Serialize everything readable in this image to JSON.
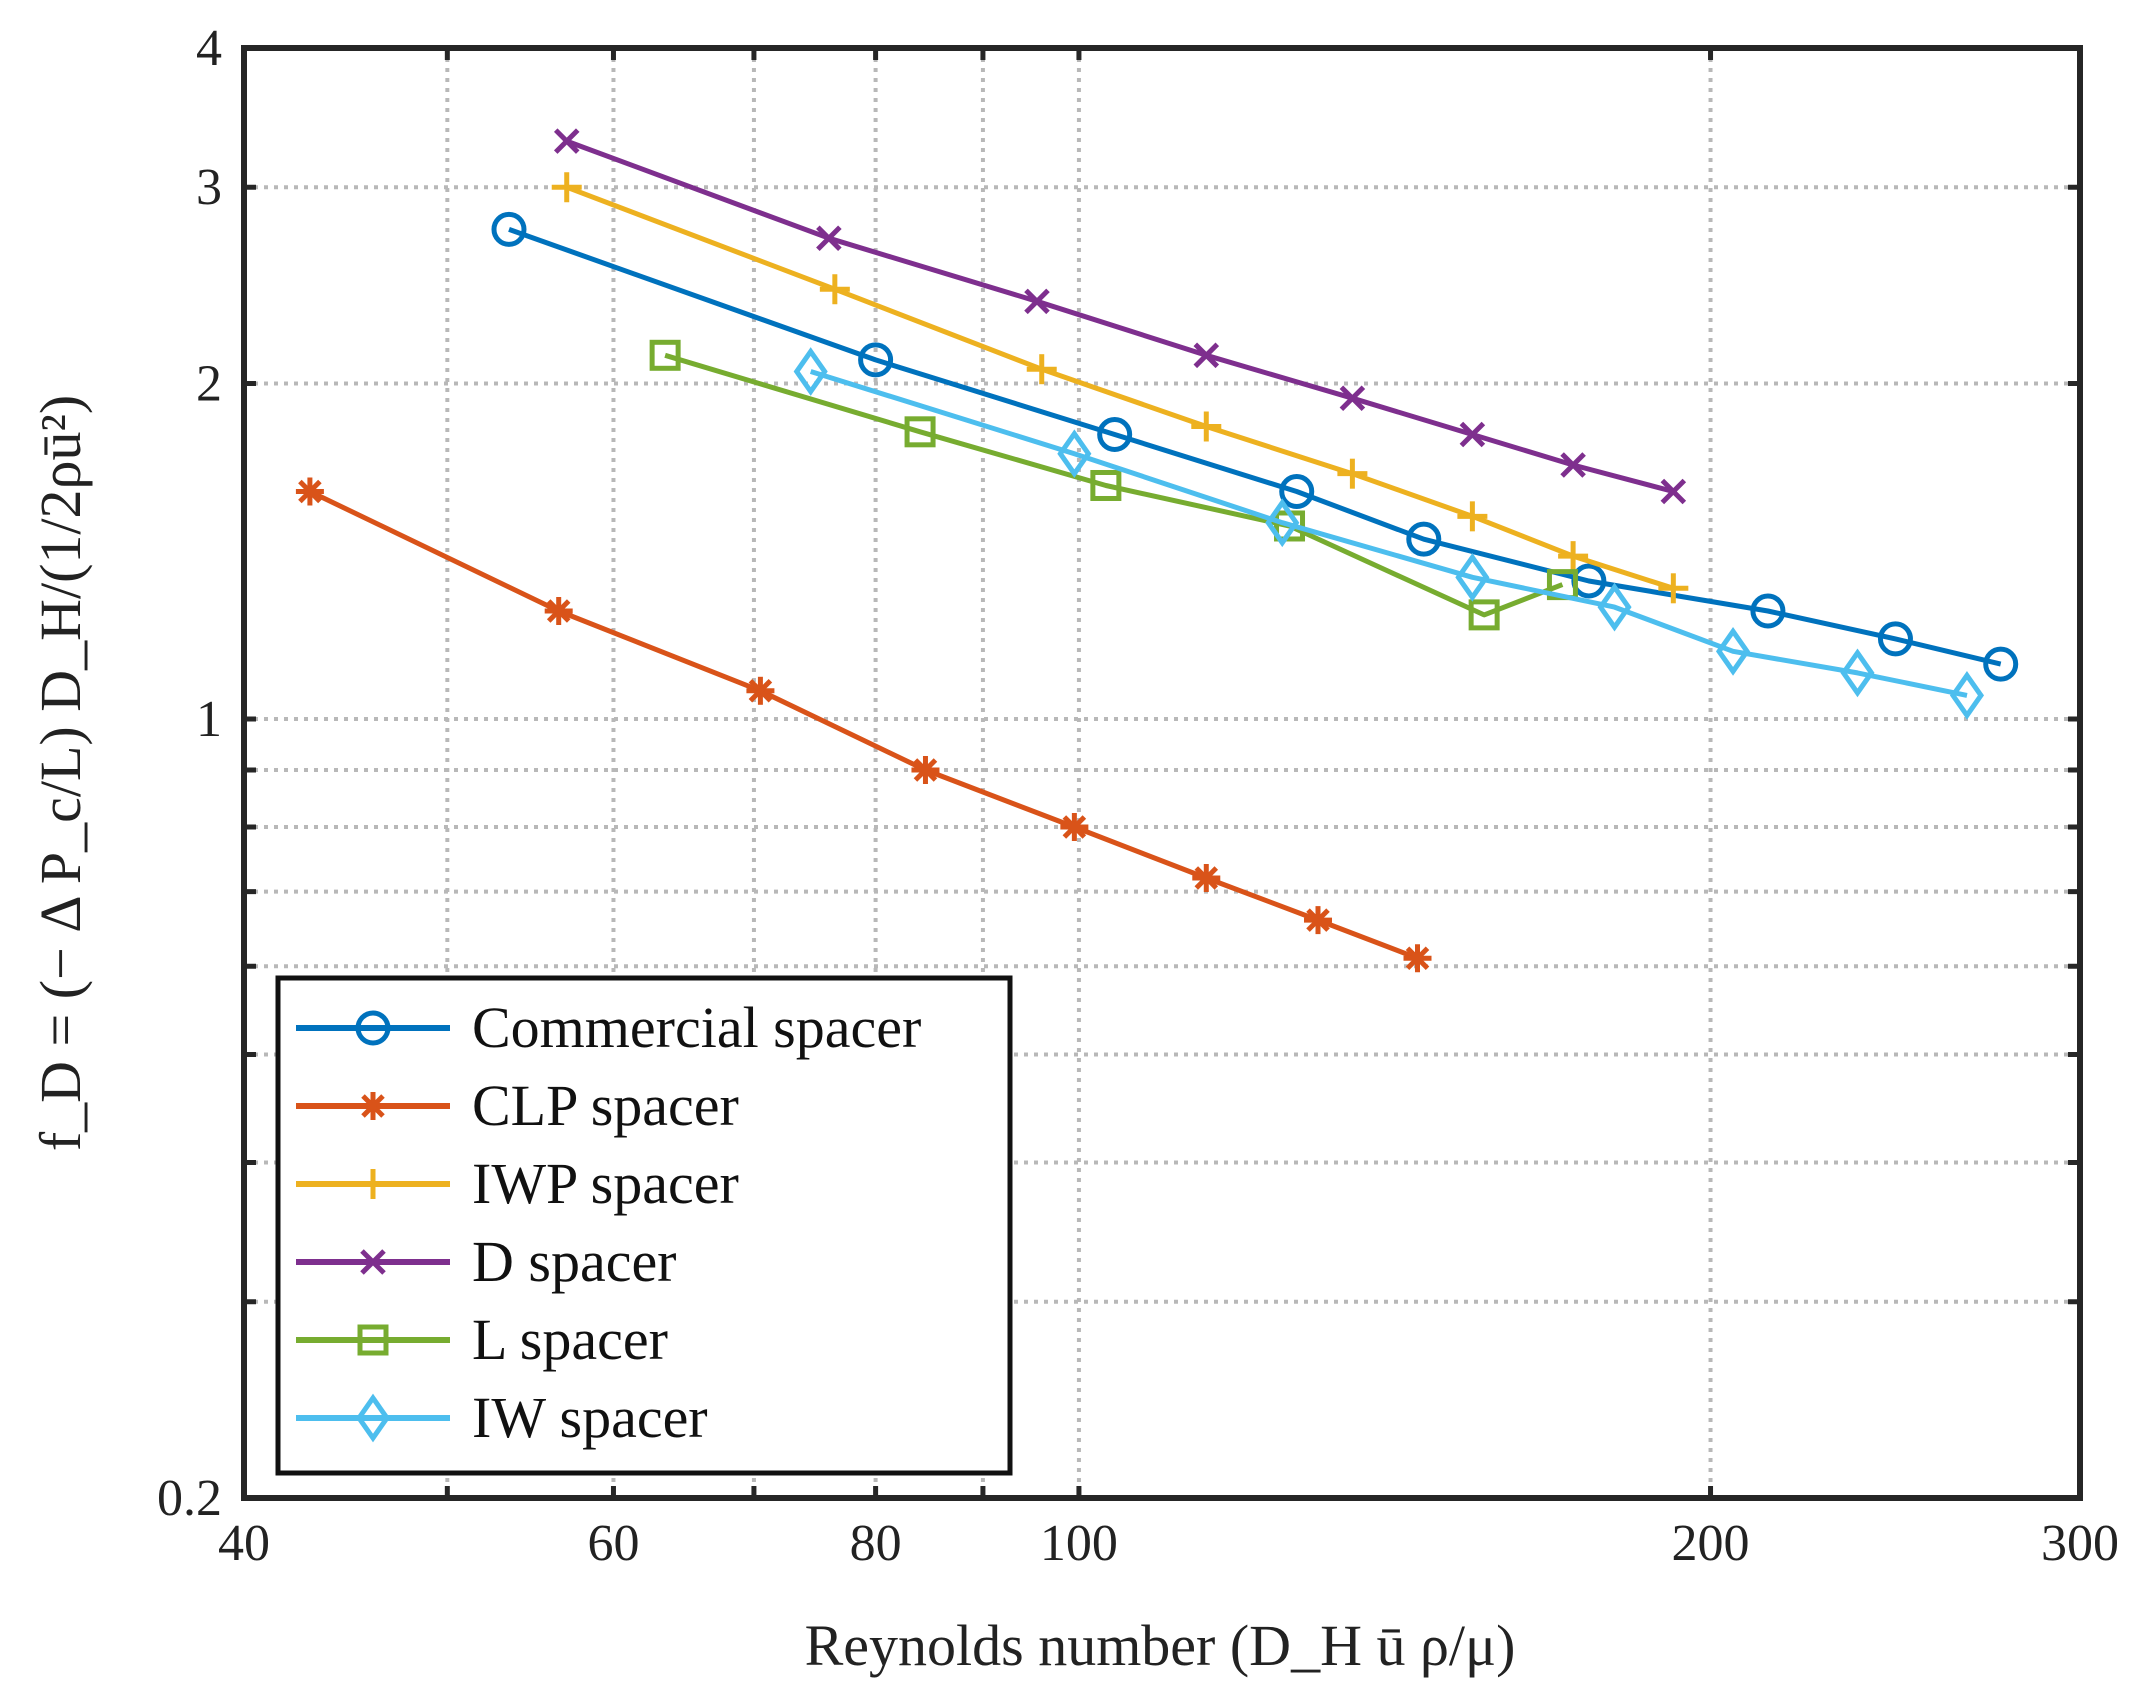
{
  "chart_data": {
    "type": "line",
    "xscale": "log",
    "yscale": "log",
    "xlabel": "Reynolds number (D_H ū ρ/μ)",
    "ylabel": "f_D = (− Δ P_c/L) D_H/(1/2ρū²)",
    "xlim": [
      40,
      300
    ],
    "ylim": [
      0.2,
      4
    ],
    "xticks": [
      40,
      60,
      80,
      100,
      200,
      300
    ],
    "xtick_labels": [
      "40",
      "60",
      "80",
      "100",
      "200",
      "300"
    ],
    "yticks": [
      0.2,
      1,
      2,
      3,
      4
    ],
    "ytick_labels": [
      "0.2",
      "1",
      "2",
      "3",
      "4"
    ],
    "xgrid": [
      50,
      60,
      70,
      80,
      90,
      100,
      200
    ],
    "ygrid": [
      0.3,
      0.4,
      0.5,
      0.6,
      0.7,
      0.8,
      0.9,
      1,
      2,
      3
    ],
    "grid": true,
    "legend_position": "bottom-left",
    "series": [
      {
        "name": "Commercial spacer",
        "color": "#0072BD",
        "marker": "circle",
        "x": [
          53.5,
          80,
          104,
          127,
          146,
          175,
          213,
          245,
          275
        ],
        "y": [
          2.75,
          2.1,
          1.8,
          1.6,
          1.45,
          1.33,
          1.25,
          1.18,
          1.12
        ]
      },
      {
        "name": "CLP spacer",
        "color": "#D95319",
        "marker": "asterisk",
        "x": [
          43,
          56.5,
          70.5,
          84.5,
          99.5,
          115,
          130,
          145
        ],
        "y": [
          1.6,
          1.25,
          1.06,
          0.9,
          0.8,
          0.72,
          0.66,
          0.61
        ]
      },
      {
        "name": "IWP spacer",
        "color": "#EDB120",
        "marker": "plus",
        "x": [
          57,
          76.5,
          96,
          115,
          135,
          154,
          172,
          192
        ],
        "y": [
          3.0,
          2.43,
          2.06,
          1.83,
          1.66,
          1.52,
          1.4,
          1.31
        ]
      },
      {
        "name": "D spacer",
        "color": "#7E2F8E",
        "marker": "x",
        "x": [
          57,
          76,
          95.5,
          115,
          135,
          154,
          172,
          192
        ],
        "y": [
          3.3,
          2.7,
          2.37,
          2.12,
          1.94,
          1.8,
          1.69,
          1.6
        ]
      },
      {
        "name": "L spacer",
        "color": "#77AC30",
        "marker": "square",
        "x": [
          63.5,
          84,
          103,
          126,
          156,
          170
        ],
        "y": [
          2.12,
          1.81,
          1.62,
          1.49,
          1.24,
          1.32
        ]
      },
      {
        "name": "IW spacer",
        "color": "#4DBEEE",
        "marker": "diamond",
        "x": [
          74.5,
          99.5,
          125,
          154,
          180,
          205,
          235,
          265
        ],
        "y": [
          2.05,
          1.73,
          1.5,
          1.34,
          1.26,
          1.15,
          1.1,
          1.05
        ]
      }
    ]
  }
}
